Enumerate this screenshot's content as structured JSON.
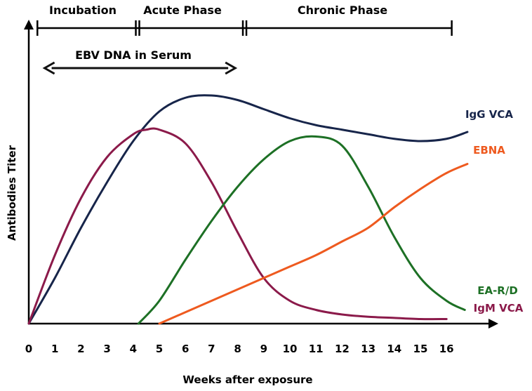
{
  "chart_data": {
    "type": "line",
    "xlabel": "Weeks after exposure",
    "ylabel": "Antibodies Titer",
    "xlim": [
      0,
      17.3
    ],
    "ylim": [
      0,
      100
    ],
    "x_ticks": [
      "0",
      "1",
      "2",
      "3",
      "4",
      "5",
      "6",
      "7",
      "8",
      "9",
      "10",
      "11",
      "12",
      "13",
      "14",
      "15",
      "16"
    ],
    "phases": [
      {
        "label": "Incubation",
        "start": 0.33,
        "end": 4.1
      },
      {
        "label": "Acute Phase",
        "start": 4.1,
        "end": 8.2
      },
      {
        "label": "Chronic Phase",
        "start": 8.2,
        "end": 16.2
      }
    ],
    "annotation": {
      "label": "EBV DNA in Serum",
      "start": 0.5,
      "end": 7.8
    },
    "series": [
      {
        "name": "IgG VCA",
        "color": "#17254a",
        "points": [
          [
            0,
            0
          ],
          [
            1,
            20
          ],
          [
            2,
            42
          ],
          [
            3,
            62
          ],
          [
            4,
            80
          ],
          [
            5,
            93
          ],
          [
            6,
            99
          ],
          [
            7,
            100
          ],
          [
            8,
            98
          ],
          [
            9,
            94
          ],
          [
            10,
            90
          ],
          [
            11,
            87
          ],
          [
            12,
            85
          ],
          [
            13,
            83
          ],
          [
            14,
            81
          ],
          [
            15,
            80
          ],
          [
            16,
            81
          ],
          [
            16.8,
            84
          ]
        ]
      },
      {
        "name": "IgM VCA",
        "color": "#8b1a4a",
        "points": [
          [
            0,
            0
          ],
          [
            1,
            30
          ],
          [
            2,
            55
          ],
          [
            3,
            73
          ],
          [
            4,
            83
          ],
          [
            4.5,
            85
          ],
          [
            5,
            85
          ],
          [
            6,
            79
          ],
          [
            7,
            62
          ],
          [
            8,
            40
          ],
          [
            9,
            20
          ],
          [
            10,
            10
          ],
          [
            11,
            6
          ],
          [
            12,
            4
          ],
          [
            13,
            3
          ],
          [
            14,
            2.5
          ],
          [
            15,
            2
          ],
          [
            16,
            2
          ]
        ]
      },
      {
        "name": "EA-R/D",
        "color": "#1d7025",
        "points": [
          [
            4.2,
            0
          ],
          [
            5,
            10
          ],
          [
            6,
            28
          ],
          [
            7,
            45
          ],
          [
            8,
            60
          ],
          [
            9,
            72
          ],
          [
            10,
            80
          ],
          [
            11,
            82
          ],
          [
            12,
            78
          ],
          [
            13,
            60
          ],
          [
            14,
            38
          ],
          [
            15,
            20
          ],
          [
            16,
            10
          ],
          [
            16.7,
            6
          ]
        ]
      },
      {
        "name": "EBNA",
        "color": "#ee5a1f",
        "points": [
          [
            5,
            0
          ],
          [
            6,
            5
          ],
          [
            7,
            10
          ],
          [
            8,
            15
          ],
          [
            9,
            20
          ],
          [
            10,
            25
          ],
          [
            11,
            30
          ],
          [
            12,
            36
          ],
          [
            13,
            42
          ],
          [
            14,
            51
          ],
          [
            15,
            59
          ],
          [
            16,
            66
          ],
          [
            16.8,
            70
          ]
        ]
      }
    ]
  }
}
